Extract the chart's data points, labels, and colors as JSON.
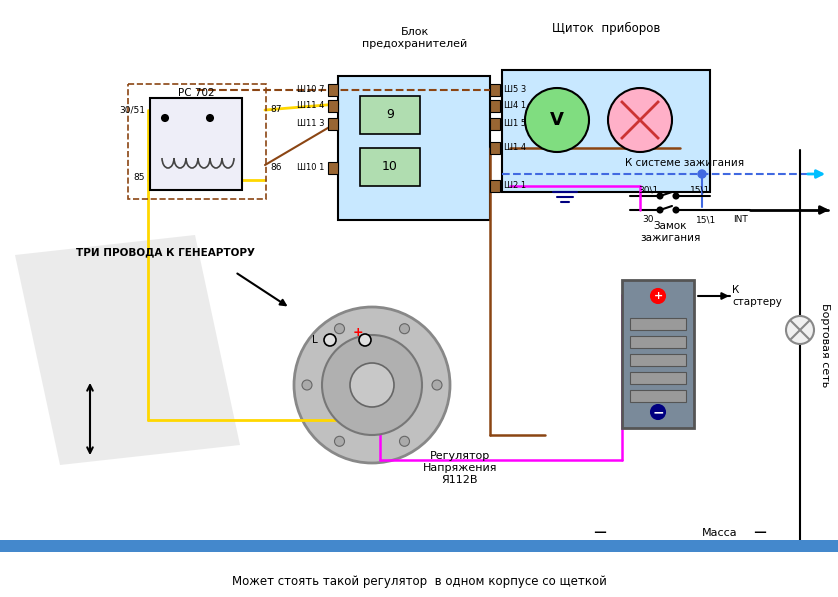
{
  "bg": "#ffffff",
  "yellow": "#FFD700",
  "brown": "#8B4513",
  "magenta": "#FF00FF",
  "blue": "#4169E1",
  "cyan_arrow": "#00BFFF",
  "black": "#000000",
  "light_blue": "#c8e8ff",
  "green": "#50c050",
  "pink": "#FFB6C1",
  "gray": "#888888",
  "dark_gray": "#555555",
  "red": "#FF0000",
  "navy": "#000080",
  "blok_label": "Блок\nпредохранителей",
  "shitok_label": "Щиток  приборов",
  "tri_label": "ТРИ ПРОВОДА К ГЕНЕАРТОРУ",
  "zamok_label": "Замок\nзажигания",
  "k_sisteme_label": "К системе зажигания",
  "k_starteru_label": "К\nстартеру",
  "bortovaya_label": "Бортовая сеть",
  "massa_label": "Масса",
  "regl_label": "Регулятор\nНапряжения\nЯ112В",
  "rs702_label": "РС 702",
  "int_label": "INT",
  "mojet_label": "Может стоять такой регулятор  в одном корпусе со щеткой",
  "sh107": "Ш10 7",
  "sh114": "Ш11 4",
  "sh113": "Ш11 3",
  "sh101": "Ш10 1",
  "sh53": "Ш5 3",
  "sh41": "Ш4 1",
  "sh15": "Ш1 5",
  "sh14": "Ш1 4",
  "sh21": "Ш2 1",
  "n9": "9",
  "n10": "10",
  "p3051": "30/51",
  "p87": "87",
  "p86": "86",
  "p85": "85",
  "p30": "30",
  "p151": "15\\1",
  "p301": "30\\1",
  "L_label": "L"
}
